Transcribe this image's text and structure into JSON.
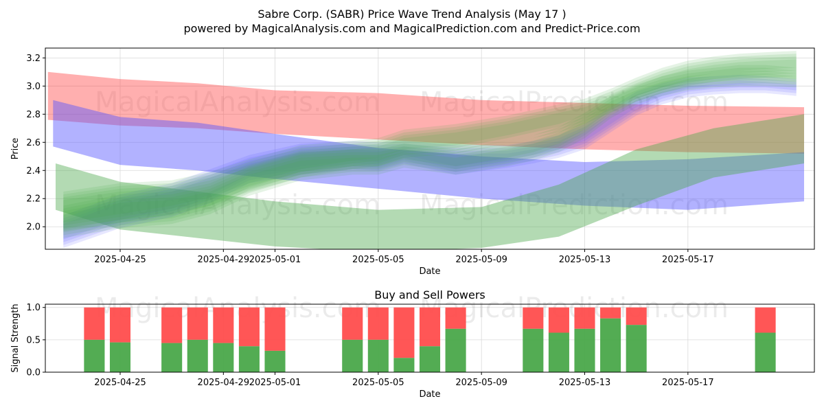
{
  "figure": {
    "title": "Sabre Corp. (SABR) Price Wave Trend Analysis (May 17 )",
    "subtitle": "powered by MagicalAnalysis.com and MagicalPrediction.com and Predict-Price.com",
    "watermarks": [
      "MagicalAnalysis.com",
      "MagicalPrediction.com"
    ]
  },
  "colors": {
    "red": "#ff4d4d",
    "blue": "#5555ff",
    "green": "#4aa84a",
    "grid": "#d9d9d9"
  },
  "chart_data": [
    {
      "type": "area",
      "title": "",
      "xlabel": "Date",
      "ylabel": "Price",
      "xlim": [
        -2.9,
        26.9
      ],
      "ylim": [
        1.84,
        3.27
      ],
      "xticks": [
        {
          "day": 0,
          "label": "2025-04-25"
        },
        {
          "day": 4,
          "label": "2025-04-29"
        },
        {
          "day": 6,
          "label": "2025-05-01"
        },
        {
          "day": 10,
          "label": "2025-05-05"
        },
        {
          "day": 14,
          "label": "2025-05-09"
        },
        {
          "day": 18,
          "label": "2025-05-13"
        },
        {
          "day": 22,
          "label": "2025-05-17"
        }
      ],
      "yticks": [
        2.0,
        2.2,
        2.4,
        2.6,
        2.8,
        3.0,
        3.2
      ],
      "grid": true,
      "trend_bands": [
        {
          "color": "red",
          "x": [
            -2.8,
            0,
            3,
            6,
            10,
            14,
            18,
            22,
            26.5
          ],
          "upper": [
            3.1,
            3.05,
            3.02,
            2.97,
            2.95,
            2.9,
            2.88,
            2.86,
            2.85
          ],
          "lower": [
            2.76,
            2.72,
            2.7,
            2.66,
            2.62,
            2.58,
            2.55,
            2.53,
            2.52
          ]
        },
        {
          "color": "blue",
          "x": [
            -2.6,
            0,
            3,
            6,
            10,
            14,
            18,
            22,
            26.5
          ],
          "upper": [
            2.9,
            2.78,
            2.74,
            2.66,
            2.56,
            2.5,
            2.46,
            2.48,
            2.53
          ],
          "lower": [
            2.57,
            2.44,
            2.4,
            2.34,
            2.27,
            2.2,
            2.15,
            2.12,
            2.18
          ]
        },
        {
          "color": "green",
          "x": [
            -2.5,
            0,
            3,
            6,
            10,
            14,
            17,
            20,
            23,
            26.5
          ],
          "upper": [
            2.45,
            2.32,
            2.25,
            2.18,
            2.12,
            2.14,
            2.3,
            2.55,
            2.7,
            2.8
          ]
        },
        {
          "color": "green",
          "x": [
            -2.5,
            0,
            3,
            6,
            10,
            14,
            17,
            20,
            23,
            26.5
          ],
          "lower": [
            2.12,
            1.98,
            1.92,
            1.86,
            1.82,
            1.85,
            1.93,
            2.15,
            2.35,
            2.45
          ]
        }
      ],
      "wave_series": [
        {
          "color": "blue",
          "x": [
            -2.2,
            0,
            2,
            3.5,
            5,
            7,
            9,
            10,
            11,
            13,
            15,
            16,
            17,
            18,
            19,
            20,
            21,
            22,
            23,
            24,
            25,
            26.2
          ],
          "upper": [
            2.05,
            2.2,
            2.28,
            2.38,
            2.48,
            2.56,
            2.58,
            2.57,
            2.58,
            2.55,
            2.55,
            2.58,
            2.62,
            2.7,
            2.82,
            2.93,
            2.99,
            3.03,
            3.04,
            3.05,
            3.04,
            3.02
          ],
          "lower": [
            1.88,
            2.02,
            2.1,
            2.2,
            2.34,
            2.4,
            2.44,
            2.43,
            2.48,
            2.4,
            2.45,
            2.48,
            2.52,
            2.58,
            2.7,
            2.82,
            2.9,
            2.95,
            2.97,
            2.98,
            2.98,
            2.96
          ]
        },
        {
          "color": "green",
          "x": [
            -2.2,
            0,
            2,
            3.5,
            5,
            7,
            9,
            10,
            11,
            13,
            15,
            16,
            17,
            18,
            19,
            20,
            21,
            22,
            23,
            24,
            25,
            26.2
          ],
          "upper": [
            2.22,
            2.28,
            2.3,
            2.36,
            2.45,
            2.55,
            2.58,
            2.6,
            2.66,
            2.7,
            2.76,
            2.8,
            2.84,
            2.88,
            2.95,
            3.03,
            3.1,
            3.15,
            3.18,
            3.2,
            3.21,
            3.22
          ],
          "lower": [
            2.0,
            2.06,
            2.12,
            2.18,
            2.28,
            2.38,
            2.44,
            2.46,
            2.52,
            2.55,
            2.62,
            2.66,
            2.7,
            2.76,
            2.84,
            2.92,
            2.98,
            3.03,
            3.06,
            3.08,
            3.09,
            3.1
          ]
        },
        {
          "color": "green",
          "x": [
            -2.2,
            0,
            2,
            3.5,
            5,
            7,
            9,
            10,
            11,
            13,
            15,
            16,
            17,
            18,
            19,
            20,
            21,
            22,
            23,
            24,
            25,
            26.2
          ],
          "upper": [
            2.12,
            2.2,
            2.22,
            2.28,
            2.4,
            2.5,
            2.52,
            2.52,
            2.56,
            2.52,
            2.58,
            2.62,
            2.68,
            2.78,
            2.9,
            2.98,
            3.04,
            3.08,
            3.1,
            3.12,
            3.12,
            3.1
          ],
          "lower": [
            1.95,
            2.02,
            2.05,
            2.12,
            2.25,
            2.36,
            2.4,
            2.4,
            2.45,
            2.4,
            2.46,
            2.5,
            2.56,
            2.66,
            2.8,
            2.9,
            2.96,
            3.0,
            3.02,
            3.03,
            3.03,
            3.02
          ]
        }
      ]
    },
    {
      "type": "bar",
      "title": "Buy and Sell Powers",
      "xlabel": "Date",
      "ylabel": "Signal Strength",
      "xlim": [
        -2.9,
        26.9
      ],
      "ylim": [
        0,
        1.05
      ],
      "xticks": [
        {
          "day": 0,
          "label": "2025-04-25"
        },
        {
          "day": 4,
          "label": "2025-04-29"
        },
        {
          "day": 6,
          "label": "2025-05-01"
        },
        {
          "day": 10,
          "label": "2025-05-05"
        },
        {
          "day": 14,
          "label": "2025-05-09"
        },
        {
          "day": 18,
          "label": "2025-05-13"
        },
        {
          "day": 22,
          "label": "2025-05-17"
        }
      ],
      "yticks": [
        0.0,
        0.5,
        1.0
      ],
      "grid": true,
      "series": [
        {
          "name": "Buy",
          "color": "green"
        },
        {
          "name": "Sell",
          "color": "red"
        }
      ],
      "days": [
        -1,
        0,
        2,
        3,
        4,
        5,
        6,
        9,
        10,
        11,
        12,
        13,
        16,
        17,
        18,
        19,
        20,
        25
      ],
      "buy": [
        0.5,
        0.46,
        0.45,
        0.5,
        0.45,
        0.4,
        0.33,
        0.5,
        0.5,
        0.22,
        0.4,
        0.67,
        0.67,
        0.61,
        0.67,
        0.83,
        0.73,
        0.61
      ]
    }
  ]
}
